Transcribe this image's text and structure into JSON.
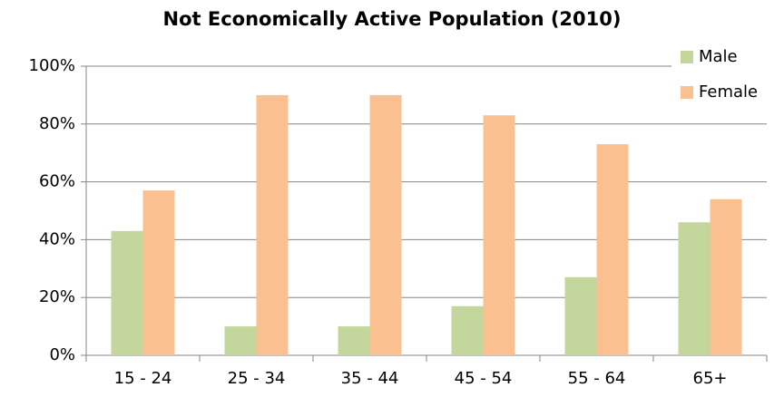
{
  "chart_data": {
    "type": "bar",
    "title": "Not Economically Active Population (2010)",
    "categories": [
      "15 - 24",
      "25 - 34",
      "35 - 44",
      "45 - 54",
      "55 - 64",
      "65+"
    ],
    "series": [
      {
        "name": "Male",
        "color": "#c3d69b",
        "values": [
          43,
          10,
          10,
          17,
          27,
          46
        ]
      },
      {
        "name": "Female",
        "color": "#fac090",
        "values": [
          57,
          90,
          90,
          83,
          73,
          54
        ]
      }
    ],
    "ylim": [
      0,
      100
    ],
    "yticks": [
      {
        "value": 0,
        "label": "0%"
      },
      {
        "value": 20,
        "label": "20%"
      },
      {
        "value": 40,
        "label": "40%"
      },
      {
        "value": 60,
        "label": "60%"
      },
      {
        "value": 80,
        "label": "80%"
      },
      {
        "value": 100,
        "label": "100%"
      }
    ],
    "grid": true,
    "legend": "top-right"
  }
}
